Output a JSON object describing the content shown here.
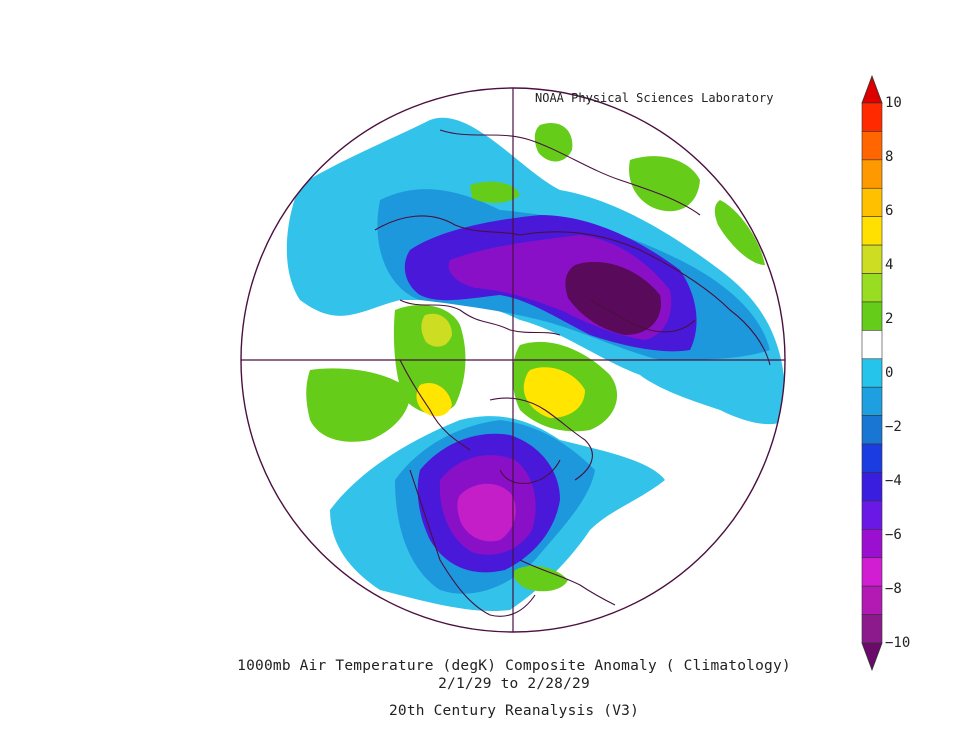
{
  "credit": "NOAA Physical Sciences Laboratory",
  "title": {
    "line1": "1000mb Air Temperature (degK) Composite Anomaly ( Climatology)",
    "line2": "2/1/29  to 2/28/29",
    "line3": "20th Century Reanalysis (V3)"
  },
  "colorbar": {
    "levels": [
      -10,
      -9,
      -8,
      -7,
      -6,
      -5,
      -4,
      -3,
      -2,
      -1,
      1,
      2,
      3,
      4,
      5,
      6,
      7,
      8,
      9,
      10
    ],
    "colors": [
      "#6a0a6a",
      "#8c1a8c",
      "#b31ab3",
      "#d21ed2",
      "#9b10d0",
      "#6a18e6",
      "#3a1ee0",
      "#1a3ce0",
      "#1976d2",
      "#1ea0e0",
      "#25c4ea",
      "#ffffff",
      "#66cc1a",
      "#99dd22",
      "#ccdd22",
      "#ffe000",
      "#ffc000",
      "#ff9900",
      "#ff6600",
      "#ff2a00",
      "#dd0000"
    ],
    "tick_labels": [
      "10",
      "8",
      "6",
      "4",
      "2",
      "0",
      "−2",
      "−4",
      "−6",
      "−8",
      "−10"
    ]
  },
  "map": {
    "projection": "north-polar-stereographic",
    "colors": {
      "land_outline": "#4a1040",
      "neutral": "#ffffff",
      "light_cyan": "#33c3ea",
      "cyan": "#1e98dc",
      "blue": "#2244dd",
      "indigo": "#4a18d8",
      "purple": "#8a10c8",
      "magenta": "#c31ec8",
      "dark_purple": "#5a0a5a",
      "green": "#66cc1a",
      "lime": "#b3dd22",
      "yellow": "#ffe500"
    }
  }
}
